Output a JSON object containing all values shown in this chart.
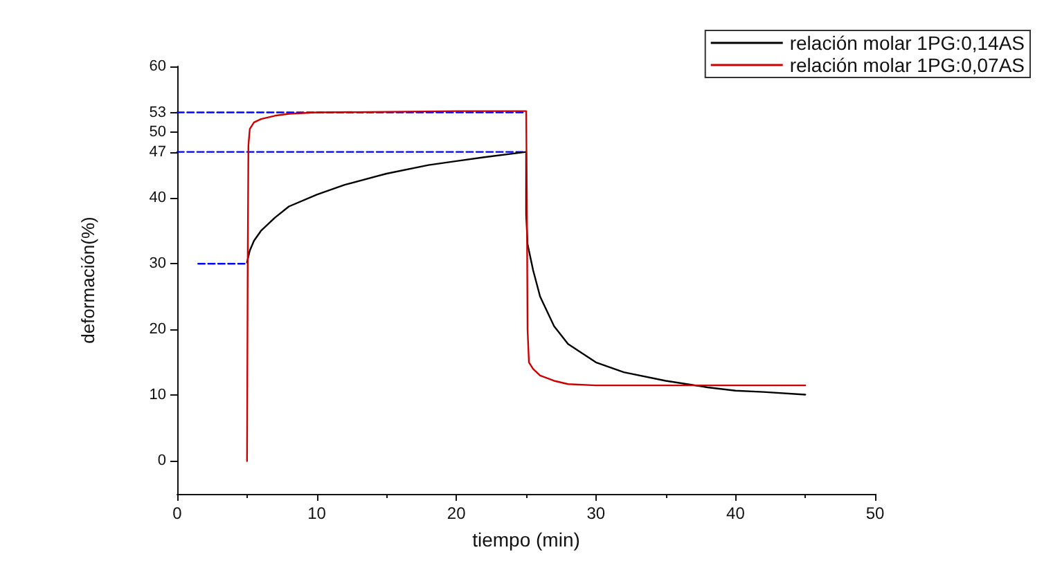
{
  "chart_data": {
    "type": "line",
    "xlabel": "tiempo (min)",
    "ylabel": "deformación(%)",
    "xlim": [
      0,
      50
    ],
    "xticks": [
      0,
      10,
      20,
      30,
      40,
      50
    ],
    "ylim": [
      -5,
      60
    ],
    "yticks": [
      0,
      10,
      20,
      30,
      40,
      47,
      50,
      53,
      60
    ],
    "grid": false,
    "legend": "top right",
    "marker": "none",
    "line_style": "solid",
    "series": [
      {
        "name": "relación molar 1PG:0,14AS",
        "color": "#000000",
        "x": [
          5,
          5.2,
          5.5,
          6,
          7,
          8,
          10,
          12,
          15,
          18,
          20,
          22,
          25,
          25,
          25.1,
          25.5,
          26,
          27,
          28,
          30,
          32,
          35,
          38,
          40,
          42,
          45
        ],
        "values": [
          30.2,
          32,
          33.5,
          35,
          37,
          38.7,
          40.5,
          42,
          43.7,
          45,
          45.6,
          46.2,
          47,
          37.5,
          33,
          29,
          25,
          20.5,
          17.8,
          15,
          13.5,
          12.2,
          11.2,
          10.7,
          10.5,
          10.1
        ]
      },
      {
        "name": "relación molar 1PG:0,07AS",
        "color": "#cc0000",
        "x": [
          5,
          5.05,
          5.1,
          5.2,
          5.5,
          6,
          7,
          8,
          10,
          15,
          20,
          25,
          25.05,
          25.1,
          25.2,
          25.5,
          26,
          27,
          28,
          30,
          35,
          45
        ],
        "values": [
          0,
          30,
          48,
          50.5,
          51.5,
          52,
          52.5,
          52.8,
          53,
          53.1,
          53.2,
          53.2,
          40,
          20,
          15,
          14,
          13,
          12.2,
          11.7,
          11.5,
          11.5,
          11.5
        ]
      },
      {
        "color": "#0000ff",
        "line_style": "dashed",
        "x": [
          0,
          25
        ],
        "values": [
          53,
          53
        ]
      },
      {
        "color": "#0000ff",
        "line_style": "dashed",
        "x": [
          0,
          25
        ],
        "values": [
          47,
          47
        ]
      },
      {
        "color": "#0000ff",
        "line_style": "dashed",
        "x": [
          1.5,
          5
        ],
        "values": [
          30,
          30
        ]
      }
    ]
  }
}
